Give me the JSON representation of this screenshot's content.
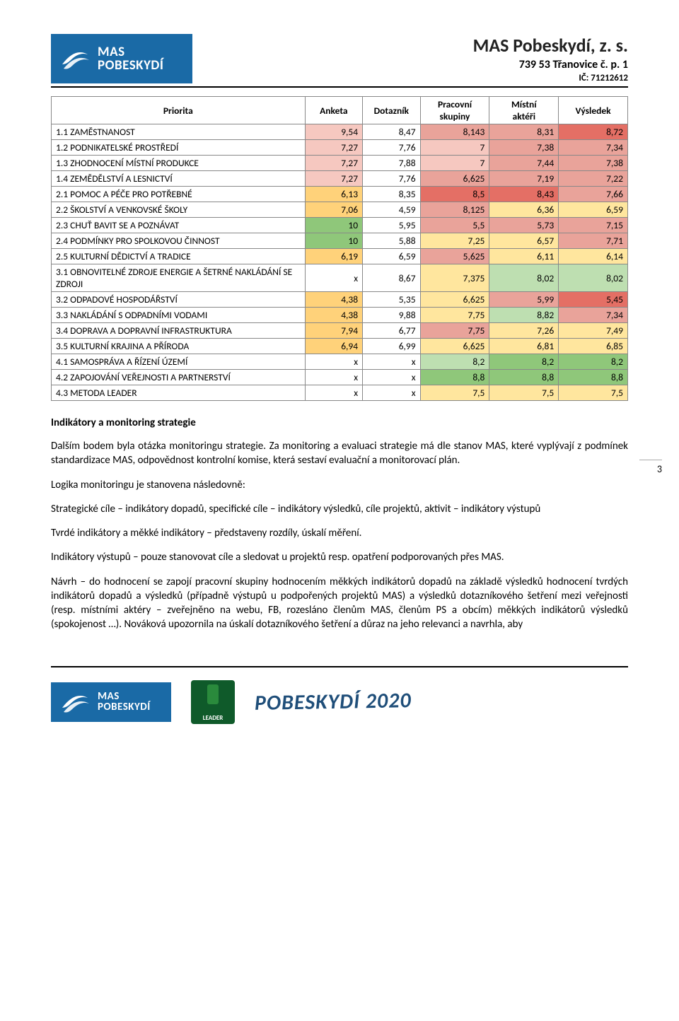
{
  "org": {
    "name": "MAS Pobeskydí, z. s.",
    "addr": "739 53 Třanovice č. p. 1",
    "ic": "IČ: 71212612",
    "logo_line1": "MAS",
    "logo_line2": "POBESKYDÍ"
  },
  "table": {
    "headers": {
      "priorita": "Priorita",
      "anketa": "Anketa",
      "dotaznik": "Dotazník",
      "ps_line1": "Pracovní",
      "ps_line2": "skupiny",
      "ma_line1": "Místní",
      "ma_line2": "aktéři",
      "vysledek": "Výsledek"
    },
    "col_widths": [
      "44%",
      "10%",
      "10%",
      "12%",
      "12%",
      "12%"
    ],
    "rows": [
      {
        "label": "1.1 ZAMĚSTNANOST",
        "cells": [
          {
            "v": "9,54",
            "bg": "#f6c8c0"
          },
          {
            "v": "8,47",
            "bg": "#ffffff"
          },
          {
            "v": "8,143",
            "bg": "#e9a39a"
          },
          {
            "v": "8,31",
            "bg": "#e9a39a"
          },
          {
            "v": "8,72",
            "bg": "#e46f65"
          }
        ]
      },
      {
        "label": "1.2 PODNIKATELSKÉ PROSTŘEDÍ",
        "cells": [
          {
            "v": "7,27",
            "bg": "#f6c8c0"
          },
          {
            "v": "7,76",
            "bg": "#ffffff"
          },
          {
            "v": "7",
            "bg": "#f6c8c0"
          },
          {
            "v": "7,38",
            "bg": "#e9a39a"
          },
          {
            "v": "7,34",
            "bg": "#e9a39a"
          }
        ]
      },
      {
        "label": "1.3 ZHODNOCENÍ MÍSTNÍ PRODUKCE",
        "cells": [
          {
            "v": "7,27",
            "bg": "#f6c8c0"
          },
          {
            "v": "7,88",
            "bg": "#ffffff"
          },
          {
            "v": "7",
            "bg": "#f6c8c0"
          },
          {
            "v": "7,44",
            "bg": "#e9a39a"
          },
          {
            "v": "7,38",
            "bg": "#e9a39a"
          }
        ]
      },
      {
        "label": "1.4 ZEMĚDĚLSTVÍ A LESNICTVÍ",
        "cells": [
          {
            "v": "7,27",
            "bg": "#f6c8c0"
          },
          {
            "v": "7,76",
            "bg": "#ffffff"
          },
          {
            "v": "6,625",
            "bg": "#e9a39a"
          },
          {
            "v": "7,19",
            "bg": "#e9a39a"
          },
          {
            "v": "7,22",
            "bg": "#e9a39a"
          }
        ]
      },
      {
        "label": "2.1 POMOC A PÉČE PRO POTŘEBNÉ",
        "cells": [
          {
            "v": "6,13",
            "bg": "#ffd27a"
          },
          {
            "v": "8,35",
            "bg": "#ffffff"
          },
          {
            "v": "8,5",
            "bg": "#e46f65"
          },
          {
            "v": "8,43",
            "bg": "#e46f65"
          },
          {
            "v": "7,66",
            "bg": "#e9a39a"
          }
        ]
      },
      {
        "label": "2.2 ŠKOLSTVÍ A VENKOVSKÉ ŠKOLY",
        "cells": [
          {
            "v": "7,06",
            "bg": "#ffd27a"
          },
          {
            "v": "4,59",
            "bg": "#ffffff"
          },
          {
            "v": "8,125",
            "bg": "#e9a39a"
          },
          {
            "v": "6,36",
            "bg": "#ffe69e"
          },
          {
            "v": "6,59",
            "bg": "#ffe69e"
          }
        ]
      },
      {
        "label": "2.3 CHUŤ BAVIT SE A POZNÁVAT",
        "cells": [
          {
            "v": "10",
            "bg": "#8fc77a"
          },
          {
            "v": "5,95",
            "bg": "#ffffff"
          },
          {
            "v": "5,5",
            "bg": "#e9a39a"
          },
          {
            "v": "5,73",
            "bg": "#e9a39a"
          },
          {
            "v": "7,15",
            "bg": "#e9a39a"
          }
        ]
      },
      {
        "label": "2.4 PODMÍNKY PRO SPOLKOVOU ČINNOST",
        "cells": [
          {
            "v": "10",
            "bg": "#8fc77a"
          },
          {
            "v": "5,88",
            "bg": "#ffffff"
          },
          {
            "v": "7,25",
            "bg": "#ffe69e"
          },
          {
            "v": "6,57",
            "bg": "#ffe69e"
          },
          {
            "v": "7,71",
            "bg": "#e9a39a"
          }
        ]
      },
      {
        "label": "2.5 KULTURNÍ DĚDICTVÍ A TRADICE",
        "cells": [
          {
            "v": "6,19",
            "bg": "#ffd27a"
          },
          {
            "v": "6,59",
            "bg": "#ffffff"
          },
          {
            "v": "5,625",
            "bg": "#e9a39a"
          },
          {
            "v": "6,11",
            "bg": "#ffe69e"
          },
          {
            "v": "6,14",
            "bg": "#ffe69e"
          }
        ]
      },
      {
        "label": "3.1 OBNOVITELNÉ ZDROJE ENERGIE A ŠETRNÉ NAKLÁDÁNÍ SE ZDROJI",
        "cells": [
          {
            "v": "x",
            "bg": "#ffffff"
          },
          {
            "v": "8,67",
            "bg": "#ffffff"
          },
          {
            "v": "7,375",
            "bg": "#ffe69e"
          },
          {
            "v": "8,02",
            "bg": "#bedfb1"
          },
          {
            "v": "8,02",
            "bg": "#bedfb1"
          }
        ]
      },
      {
        "label": "3.2 ODPADOVÉ HOSPODÁŘSTVÍ",
        "cells": [
          {
            "v": "4,38",
            "bg": "#ffd27a"
          },
          {
            "v": "5,35",
            "bg": "#ffffff"
          },
          {
            "v": "6,625",
            "bg": "#ffe69e"
          },
          {
            "v": "5,99",
            "bg": "#e9a39a"
          },
          {
            "v": "5,45",
            "bg": "#e46f65"
          }
        ]
      },
      {
        "label": "3.3 NAKLÁDÁNÍ S ODPADNÍMI VODAMI",
        "cells": [
          {
            "v": "4,38",
            "bg": "#ffd27a"
          },
          {
            "v": "9,88",
            "bg": "#ffffff"
          },
          {
            "v": "7,75",
            "bg": "#ffe69e"
          },
          {
            "v": "8,82",
            "bg": "#bedfb1"
          },
          {
            "v": "7,34",
            "bg": "#e9a39a"
          }
        ]
      },
      {
        "label": "3.4 DOPRAVA A DOPRAVNÍ INFRASTRUKTURA",
        "cells": [
          {
            "v": "7,94",
            "bg": "#ffd27a"
          },
          {
            "v": "6,77",
            "bg": "#ffffff"
          },
          {
            "v": "7,75",
            "bg": "#e9a39a"
          },
          {
            "v": "7,26",
            "bg": "#ffe69e"
          },
          {
            "v": "7,49",
            "bg": "#ffe69e"
          }
        ]
      },
      {
        "label": "3.5 KULTURNÍ KRAJINA A PŘÍRODA",
        "cells": [
          {
            "v": "6,94",
            "bg": "#ffd27a"
          },
          {
            "v": "6,99",
            "bg": "#ffffff"
          },
          {
            "v": "6,625",
            "bg": "#ffe69e"
          },
          {
            "v": "6,81",
            "bg": "#ffe69e"
          },
          {
            "v": "6,85",
            "bg": "#ffe69e"
          }
        ]
      },
      {
        "label": "4.1 SAMOSPRÁVA A ŘÍZENÍ ÚZEMÍ",
        "cells": [
          {
            "v": "x",
            "bg": "#ffffff"
          },
          {
            "v": "x",
            "bg": "#ffffff"
          },
          {
            "v": "8,2",
            "bg": "#bedfb1"
          },
          {
            "v": "8,2",
            "bg": "#8fc77a"
          },
          {
            "v": "8,2",
            "bg": "#8fc77a"
          }
        ]
      },
      {
        "label": "4.2 ZAPOJOVÁNÍ VEŘEJNOSTI A PARTNERSTVÍ",
        "cells": [
          {
            "v": "x",
            "bg": "#ffffff"
          },
          {
            "v": "x",
            "bg": "#ffffff"
          },
          {
            "v": "8,8",
            "bg": "#8fc77a"
          },
          {
            "v": "8,8",
            "bg": "#8fc77a"
          },
          {
            "v": "8,8",
            "bg": "#8fc77a"
          }
        ]
      },
      {
        "label": "4.3 METODA LEADER",
        "cells": [
          {
            "v": "x",
            "bg": "#ffffff"
          },
          {
            "v": "x",
            "bg": "#ffffff"
          },
          {
            "v": "7,5",
            "bg": "#ffe69e"
          },
          {
            "v": "7,5",
            "bg": "#ffe69e"
          },
          {
            "v": "7,5",
            "bg": "#ffe69e"
          }
        ]
      }
    ]
  },
  "page_number": "3",
  "text": {
    "section1_title": "Indikátory a monitoring strategie",
    "p1": "Dalším bodem byla otázka monitoringu strategie. Za monitoring a evaluaci strategie má dle stanov MAS, které vyplývají z podmínek standardizace MAS, odpovědnost kontrolní komise, která sestaví evaluační a monitorovací plán.",
    "p2": "Logika monitoringu je stanovena následovně:",
    "p3": "Strategické cíle – indikátory dopadů, specifické cíle – indikátory výsledků, cíle projektů, aktivit – indikátory výstupů",
    "p4": "Tvrdé indikátory a měkké indikátory – představeny rozdíly, úskalí měření.",
    "p5": "Indikátory výstupů – pouze stanovovat cíle a sledovat u projektů resp. opatření podporovaných přes MAS.",
    "p6": "Návrh – do hodnocení se zapojí pracovní skupiny hodnocením měkkých indikátorů dopadů na základě výsledků hodnocení tvrdých indikátorů dopadů a výsledků (případně výstupů u podpořených projektů MAS) a výsledků dotazníkového šetření mezi veřejnosti (resp. místními aktéry – zveřejněno na webu, FB, rozesláno členům MAS, členům PS a obcím) měkkých indikátorů výsledků (spokojenost …). Nováková upozornila na úskalí dotazníkového šetření a důraz na jeho relevanci a navrhla, aby"
  },
  "footer": {
    "leader_label": "LEADER",
    "brand2020": "POBESKYDÍ 2020"
  }
}
